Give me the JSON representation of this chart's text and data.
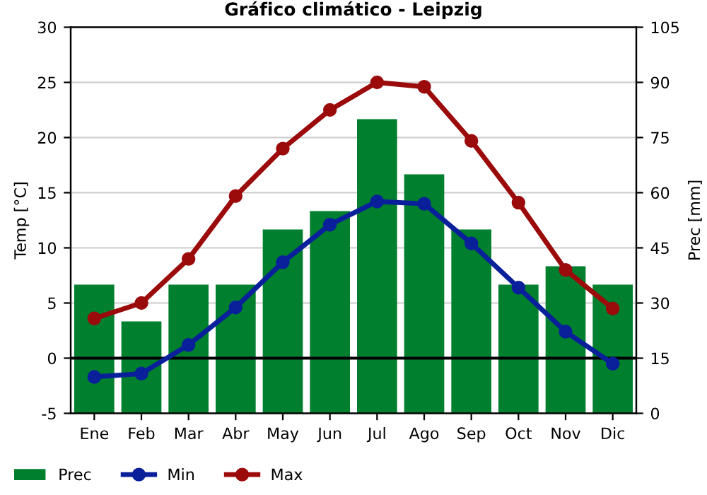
{
  "chart_data": {
    "type": "line",
    "title": "Gráfico climático - Leipzig",
    "ylabel": "Temp [°C]",
    "y2label": "Prec [mm]",
    "categories": [
      "Ene",
      "Feb",
      "Mar",
      "Abr",
      "May",
      "Jun",
      "Jul",
      "Ago",
      "Sep",
      "Oct",
      "Nov",
      "Dic"
    ],
    "series": [
      {
        "name": "Prec",
        "type": "bar",
        "axis": "y2",
        "color": "#007f2f",
        "values": [
          35,
          25,
          35,
          35,
          50,
          55,
          80,
          65,
          50,
          35,
          40,
          35
        ]
      },
      {
        "name": "Min",
        "color": "#0a1f9a",
        "values": [
          -1.7,
          -1.4,
          1.2,
          4.6,
          8.7,
          12.1,
          14.2,
          14.0,
          10.4,
          6.4,
          2.4,
          -0.5
        ]
      },
      {
        "name": "Max",
        "color": "#9b0b0b",
        "values": [
          3.6,
          5.0,
          9.0,
          14.7,
          19.0,
          22.5,
          25.0,
          24.6,
          19.7,
          14.1,
          8.0,
          4.5
        ]
      }
    ],
    "ylim": [
      -5,
      30
    ],
    "yticks": [
      -5,
      0,
      5,
      10,
      15,
      20,
      25,
      30
    ],
    "y2lim": [
      0,
      105
    ],
    "y2ticks": [
      0,
      15,
      30,
      45,
      60,
      75,
      90,
      105
    ],
    "ref_lines": [
      {
        "axis": "y",
        "value": 0,
        "color": "#000000"
      }
    ],
    "grid": "y",
    "legend": "bottom",
    "marker": "circle",
    "line_style": "solid"
  }
}
